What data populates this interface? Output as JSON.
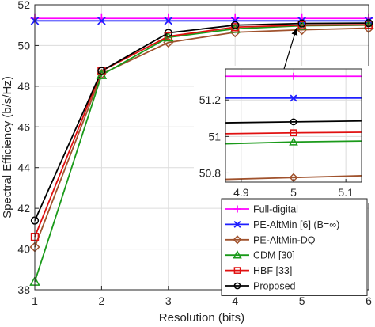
{
  "chart_data": {
    "type": "line",
    "xlabel": "Resolution (bits)",
    "ylabel": "Spectral Efficiency (b/s/Hz)",
    "xlim": [
      1,
      6
    ],
    "ylim": [
      38,
      52
    ],
    "x": [
      1,
      2,
      3,
      4,
      5,
      6
    ],
    "xticks": [
      "1",
      "2",
      "3",
      "4",
      "5",
      "6"
    ],
    "yticks": [
      "38",
      "40",
      "42",
      "44",
      "46",
      "48",
      "50",
      "52"
    ],
    "grid": true,
    "legend_position": "bottom-right",
    "series": [
      {
        "name": "Full-digital",
        "color": "#ff00ff",
        "marker": "plus",
        "values": [
          51.33,
          51.33,
          51.33,
          51.33,
          51.33,
          51.33
        ]
      },
      {
        "name": "PE-AltMin [6] (B=∞)",
        "color": "#1f1fff",
        "marker": "x",
        "values": [
          51.21,
          51.21,
          51.21,
          51.21,
          51.21,
          51.21
        ]
      },
      {
        "name": "PE-AltMin-DQ",
        "color": "#a0522d",
        "marker": "diamond",
        "values": [
          40.1,
          48.6,
          50.15,
          50.65,
          50.77,
          50.85
        ]
      },
      {
        "name": "CDM [30]",
        "color": "#1a9a1a",
        "marker": "triangle",
        "values": [
          38.4,
          48.55,
          50.4,
          50.82,
          50.97,
          51.0
        ]
      },
      {
        "name": "HBF [33]",
        "color": "#e01010",
        "marker": "square",
        "values": [
          40.6,
          48.75,
          50.45,
          50.9,
          51.0,
          51.02
        ]
      },
      {
        "name": "Proposed",
        "color": "#000000",
        "marker": "circle",
        "values": [
          41.4,
          48.75,
          50.62,
          51.0,
          51.08,
          51.1
        ]
      }
    ],
    "inset": {
      "xlim": [
        4.87,
        5.13
      ],
      "ylim": [
        50.75,
        51.37
      ],
      "xticks": [
        "4.9",
        "5",
        "5.1"
      ],
      "yticks": [
        "50.8",
        "51",
        "51.2"
      ],
      "series_values_at_x": [
        [
          51.33,
          51.33,
          51.33
        ],
        [
          51.21,
          51.21,
          51.21
        ],
        [
          50.765,
          50.775,
          50.785
        ],
        [
          50.96,
          50.97,
          50.975
        ],
        [
          51.015,
          51.02,
          51.023
        ],
        [
          51.075,
          51.08,
          51.085
        ]
      ],
      "x": [
        4.87,
        5.0,
        5.13
      ]
    }
  }
}
